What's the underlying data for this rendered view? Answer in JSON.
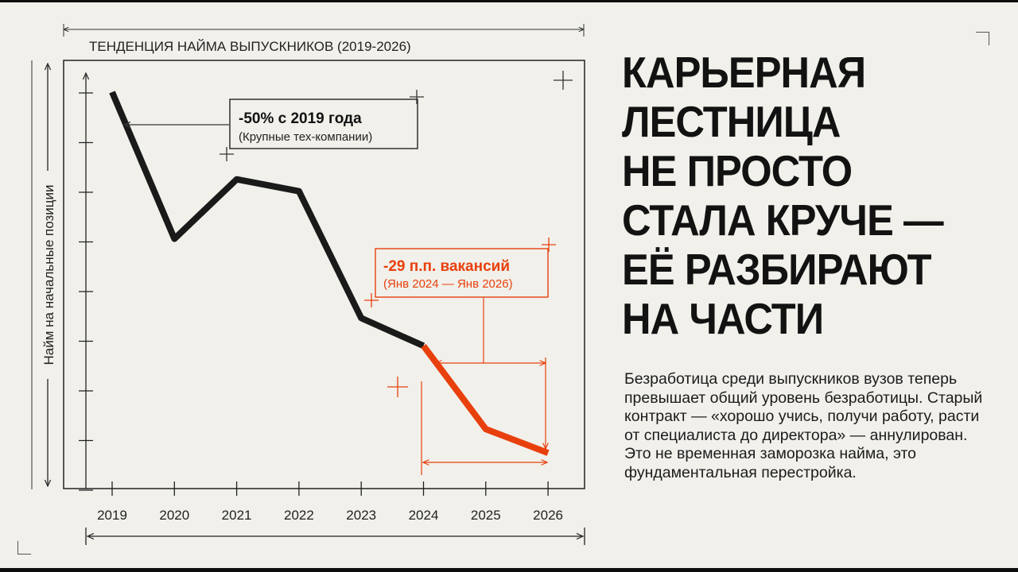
{
  "headline": {
    "lines": [
      "КАРЬЕРНАЯ",
      "ЛЕСТНИЦА",
      "НЕ ПРОСТО",
      "СТАЛА КРУЧЕ —",
      "ЕЁ РАЗБИРАЮТ",
      "НА ЧАСТИ"
    ]
  },
  "body": {
    "text": "Безработица среди выпускников вузов теперь превышает общий уровень безработицы. Старый контракт — «хорошо учись, получи работу, расти от специалиста до директора» — аннулирован. Это не временная заморозка найма, это фундаментальная перестройка."
  },
  "colors": {
    "background": "#f1f0eb",
    "line": "#1a1a1a",
    "accent": "#e8400c"
  },
  "chart_data": {
    "type": "line",
    "title": "ТЕНДЕНЦИЯ НАЙМА ВЫПУСКНИКОВ (2019-2026)",
    "xlabel": "",
    "ylabel": "Найм на начальные позиции",
    "categories": [
      "2019",
      "2020",
      "2021",
      "2022",
      "2023",
      "2024",
      "2025",
      "2026"
    ],
    "x": [
      2019,
      2020,
      2021,
      2022,
      2023,
      2024,
      2025,
      2026
    ],
    "series": [
      {
        "values": [
          100,
          63,
          78,
          75,
          43,
          36,
          15,
          9
        ]
      }
    ],
    "highlight": {
      "from": "2024",
      "to": "2026",
      "color": "#e8400c"
    },
    "ylim": [
      0,
      108
    ],
    "yticks": 9,
    "yticklabels": "none",
    "grid": false,
    "annotations": [
      {
        "title": "-50% с 2019 года",
        "subtitle": "(Крупные тех-компании)",
        "points_to": "2019",
        "color": "#1a1a1a"
      },
      {
        "title": "-29 п.п. вакансий",
        "subtitle": "(Янв 2024 — Янв 2026)",
        "range": [
          "2024",
          "2026"
        ],
        "color": "#e8400c"
      }
    ]
  }
}
